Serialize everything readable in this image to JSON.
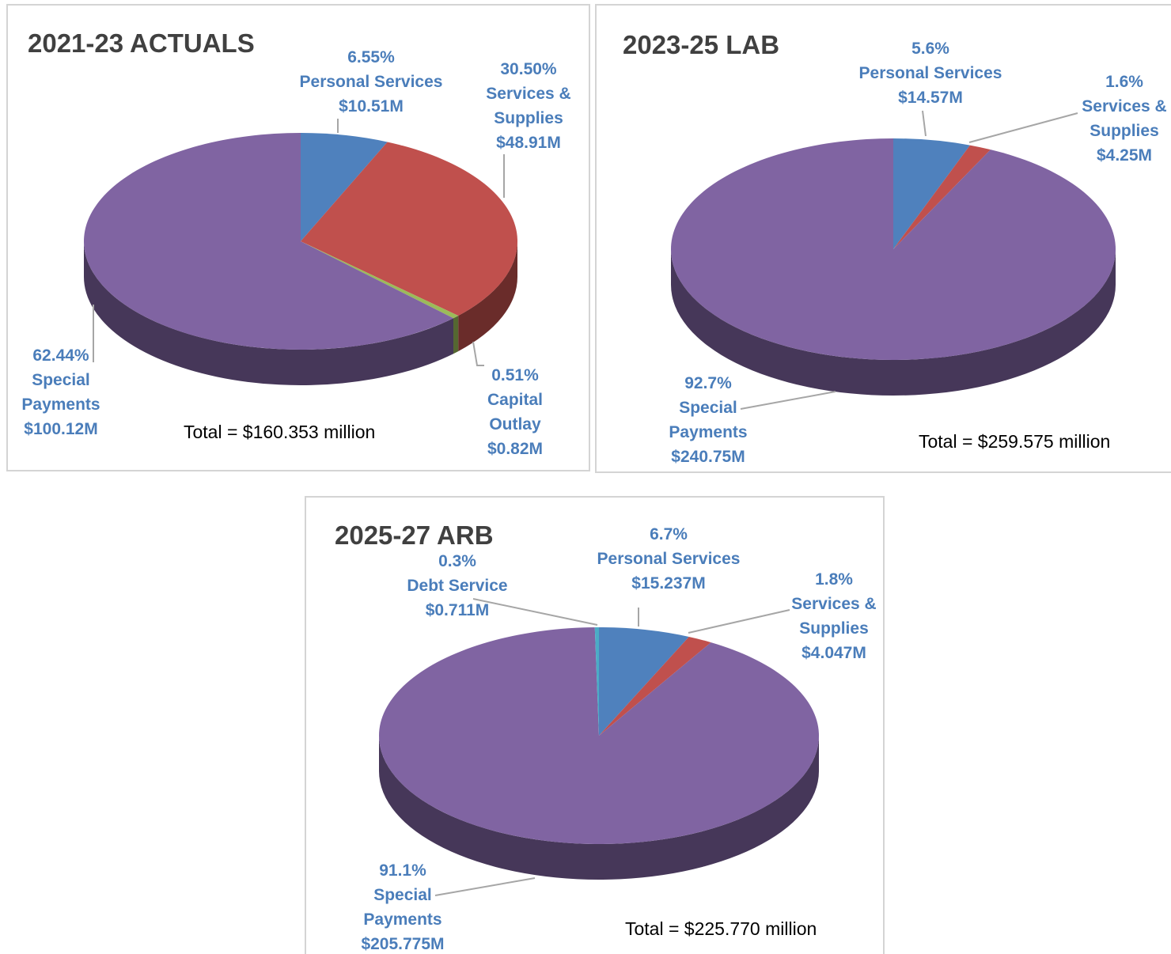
{
  "chart_data": [
    {
      "type": "pie3d",
      "title": "2021-23 ACTUALS",
      "note": "Total = $160.353 million",
      "categories": [
        "Personal Services",
        "Services & Supplies",
        "Capital Outlay",
        "Special Payments"
      ],
      "values": [
        6.55,
        30.5,
        0.51,
        62.44
      ],
      "value_labels": [
        "6.55%",
        "30.50%",
        "0.51%",
        "62.44%"
      ],
      "amount_labels": [
        "$10.51M",
        "$48.91M",
        "$0.82M",
        "$100.12M"
      ],
      "colors": [
        "#4f81bd",
        "#c0504d",
        "#9bbb59",
        "#8064a2"
      ]
    },
    {
      "type": "pie3d",
      "title": "2023-25 LAB",
      "note": "Total = $259.575 million",
      "categories": [
        "Personal Services",
        "Services & Supplies",
        "Special Payments"
      ],
      "values": [
        5.6,
        1.6,
        92.7
      ],
      "value_labels": [
        "5.6%",
        "1.6%",
        "92.7%"
      ],
      "amount_labels": [
        "$14.57M",
        "$4.25M",
        "$240.75M"
      ],
      "colors": [
        "#4f81bd",
        "#c0504d",
        "#8064a2"
      ]
    },
    {
      "type": "pie3d",
      "title": "2025-27 ARB",
      "note": "Total = $225.770 million",
      "categories": [
        "Personal Services",
        "Services & Supplies",
        "Special Payments",
        "Debt Service"
      ],
      "values": [
        6.7,
        1.8,
        91.1,
        0.3
      ],
      "value_labels": [
        "6.7%",
        "1.8%",
        "91.1%",
        "0.3%"
      ],
      "amount_labels": [
        "$15.237M",
        "$4.047M",
        "$205.775M",
        "$0.711M"
      ],
      "colors": [
        "#4f81bd",
        "#c0504d",
        "#8064a2",
        "#4bacc6"
      ]
    }
  ]
}
